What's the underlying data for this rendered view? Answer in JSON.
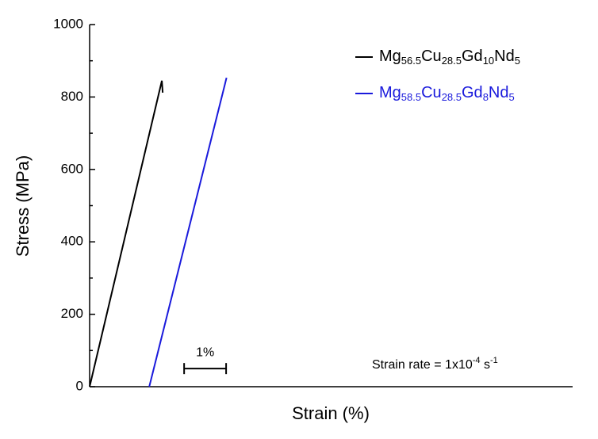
{
  "chart_data": {
    "type": "line",
    "xlabel": "Strain (%)",
    "ylabel": "Stress (MPa)",
    "xlim": [
      0,
      11.5
    ],
    "ylim": [
      0,
      1000
    ],
    "yticks": [
      0,
      200,
      400,
      600,
      800,
      1000
    ],
    "yminor": [
      100,
      300,
      500,
      700,
      900
    ],
    "series": [
      {
        "name": [
          [
            "Mg",
            "56.5"
          ],
          [
            "Cu",
            "28.5"
          ],
          [
            "Gd",
            "10"
          ],
          [
            "Nd",
            "5"
          ]
        ],
        "color": "#000000",
        "x": [
          0,
          1.72,
          1.74
        ],
        "values": [
          0,
          845,
          812
        ]
      },
      {
        "name": [
          [
            "Mg",
            "58.5"
          ],
          [
            "Cu",
            "28.5"
          ],
          [
            "Gd",
            "8"
          ],
          [
            "Nd",
            "5"
          ]
        ],
        "color": "#1a1adc",
        "x": [
          1.42,
          3.26
        ],
        "values": [
          0,
          853
        ]
      }
    ],
    "scale_bar": {
      "label": "1%",
      "x": 2.25,
      "length": 1,
      "y": 50
    },
    "annotation": [
      {
        "text": "Strain rate = 1x10"
      },
      {
        "sup": "-4"
      },
      {
        "text": " s"
      },
      {
        "sup": "-1"
      }
    ]
  }
}
